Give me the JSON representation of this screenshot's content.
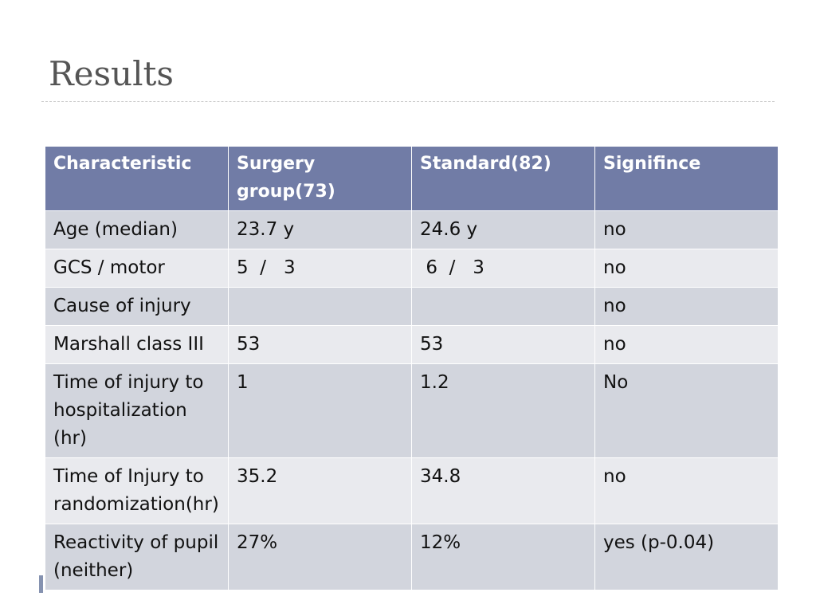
{
  "slide": {
    "title": "Results"
  },
  "table": {
    "headers": [
      "Characteristic",
      "Surgery group(73)",
      "Standard(82)",
      "Signifince"
    ],
    "rows": [
      [
        "Age (median)",
        "23.7 y",
        "24.6 y",
        "no"
      ],
      [
        "GCS / motor",
        "5  /   3",
        " 6  /   3",
        "no"
      ],
      [
        "Cause of injury",
        "",
        "",
        "no"
      ],
      [
        "Marshall class III",
        "53",
        "53",
        "no"
      ],
      [
        "Time of injury to hospitalization (hr)",
        "1",
        "1.2",
        "No"
      ],
      [
        "Time of Injury to randomization(hr)",
        "35.2",
        "34.8",
        "no"
      ],
      [
        "Reactivity of pupil (neither)",
        "27%",
        "12%",
        "yes (p-0.04)"
      ]
    ]
  }
}
